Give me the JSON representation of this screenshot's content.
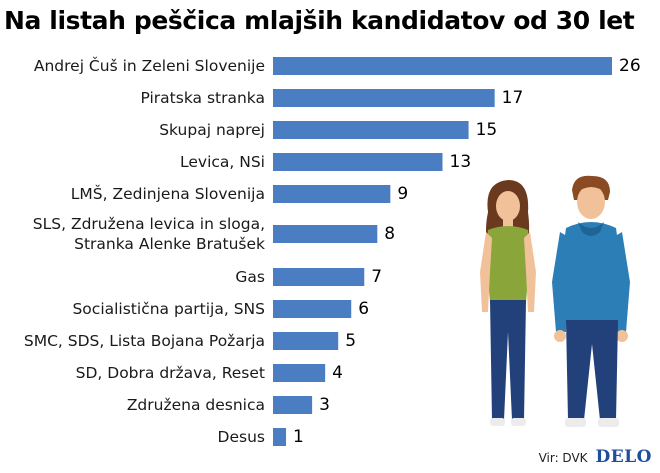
{
  "header": {
    "title": "Na listah peščica mlajših kandidatov od 30 let"
  },
  "footer": {
    "source": "Vir: DVK",
    "brand": "DELO"
  },
  "colors": {
    "bar": "#4a7dc2",
    "brand": "#1f4e9c",
    "figure_shirt_woman": "#8aa63a",
    "figure_hoodie_man": "#2b7fb6"
  },
  "illustration": {
    "icons": [
      "young-woman-icon",
      "young-man-icon"
    ]
  },
  "chart_data": {
    "type": "bar",
    "orientation": "horizontal",
    "title": "Na listah peščica mlajših kandidatov od 30 let",
    "xlabel": "",
    "ylabel": "",
    "grid": false,
    "legend": "none",
    "xlim": [
      0,
      26
    ],
    "categories": [
      [
        "Andrej Čuš in Zeleni Slovenije"
      ],
      [
        "Piratska stranka"
      ],
      [
        "Skupaj naprej"
      ],
      [
        "Levica, NSi"
      ],
      [
        "LMŠ, Zedinjena Slovenija"
      ],
      [
        "SLS, Združena levica in sloga,",
        "Stranka Alenke Bratušek"
      ],
      [
        "Gas"
      ],
      [
        "Socialistična partija, SNS"
      ],
      [
        "SMC, SDS, Lista Bojana Požarja"
      ],
      [
        "SD, Dobra država, Reset"
      ],
      [
        "Združena desnica"
      ],
      [
        "Desus"
      ]
    ],
    "values": [
      26,
      17,
      15,
      13,
      9,
      8,
      7,
      6,
      5,
      4,
      3,
      1
    ]
  }
}
